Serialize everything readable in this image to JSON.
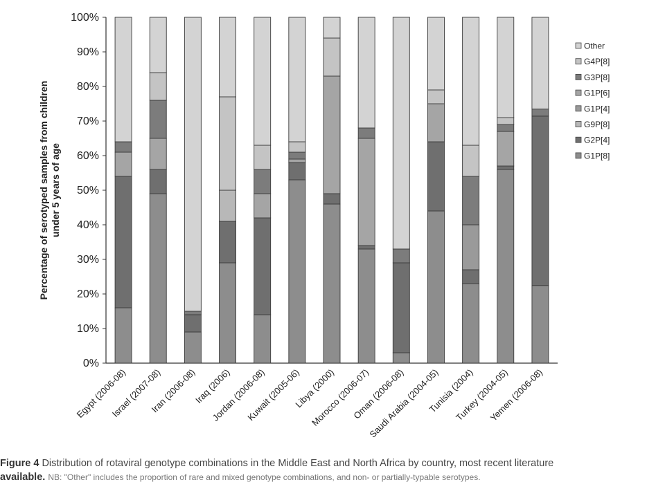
{
  "chart_data": {
    "type": "bar",
    "stacked": true,
    "ylabel": "Percentage of serotyped samples from children under 5 years of age",
    "ylabel_lines": [
      "Percentage of serotyped samples from children",
      "under 5 years of age"
    ],
    "ylim": [
      0,
      100
    ],
    "yticks": [
      "0%",
      "10%",
      "20%",
      "30%",
      "40%",
      "50%",
      "60%",
      "70%",
      "80%",
      "90%",
      "100%"
    ],
    "legend_position": "right",
    "categories": [
      "Egypt (2006-08)",
      "Israel (2007-08)",
      "Iran (2006-08)",
      "Iraq (2006)",
      "Jordan (2006-08)",
      "Kuwait (2005-06)",
      "Libya (2000)",
      "Morocco (2006-07)",
      "Oman (2006-08)",
      "Saudi Arabia (2004-05)",
      "Tunisia (2004)",
      "Turkey (2004-05)",
      "Yemen (2006-08)"
    ],
    "series": [
      {
        "name": "G1P[8]",
        "color": "#8d8d8d",
        "values": [
          16,
          49,
          9,
          29,
          14,
          53,
          46,
          33,
          3,
          44,
          23,
          56,
          22
        ]
      },
      {
        "name": "G2P[4]",
        "color": "#6f6f6f",
        "values": [
          38,
          7,
          5,
          12,
          28,
          5,
          3,
          1,
          26,
          20,
          4,
          1,
          48
        ]
      },
      {
        "name": "G9P[8]",
        "color": "#b8b8b8",
        "values": [
          0,
          0,
          0,
          9,
          0,
          0,
          0,
          0,
          0,
          0,
          0,
          0,
          0
        ]
      },
      {
        "name": "G1P[4]",
        "color": "#9a9a9a",
        "values": [
          0,
          0,
          0,
          0,
          0,
          0,
          0,
          0,
          0,
          0,
          13,
          0,
          0
        ]
      },
      {
        "name": "G1P[6]",
        "color": "#a5a5a5",
        "values": [
          7,
          9,
          0,
          0,
          7,
          1,
          34,
          31,
          0,
          11,
          0,
          10,
          0
        ]
      },
      {
        "name": "G3P[8]",
        "color": "#7c7c7c",
        "values": [
          3,
          11,
          1,
          0,
          7,
          2,
          0,
          3,
          4,
          0,
          14,
          2,
          2
        ]
      },
      {
        "name": "G4P[8]",
        "color": "#c4c4c4",
        "values": [
          0,
          8,
          0,
          27,
          7,
          3,
          11,
          0,
          0,
          4,
          9,
          2,
          0
        ]
      },
      {
        "name": "Other",
        "color": "#d3d3d3",
        "values": [
          36,
          16,
          85,
          23,
          37,
          36,
          6,
          32,
          67,
          21,
          37,
          29,
          26
        ]
      }
    ],
    "legend_order": [
      "Other",
      "G4P[8]",
      "G3P[8]",
      "G1P[6]",
      "G1P[4]",
      "G9P[8]",
      "G2P[4]",
      "G1P[8]"
    ]
  },
  "caption": {
    "figure_label": "Figure 4",
    "line1": "Distribution of rotaviral genotype combinations in the Middle East and North Africa by country, most recent literature",
    "line2_bold": "available.",
    "line2_note": "NB: \"Other\" includes the proportion of rare and mixed genotype combinations, and non- or partially-typable serotypes."
  }
}
